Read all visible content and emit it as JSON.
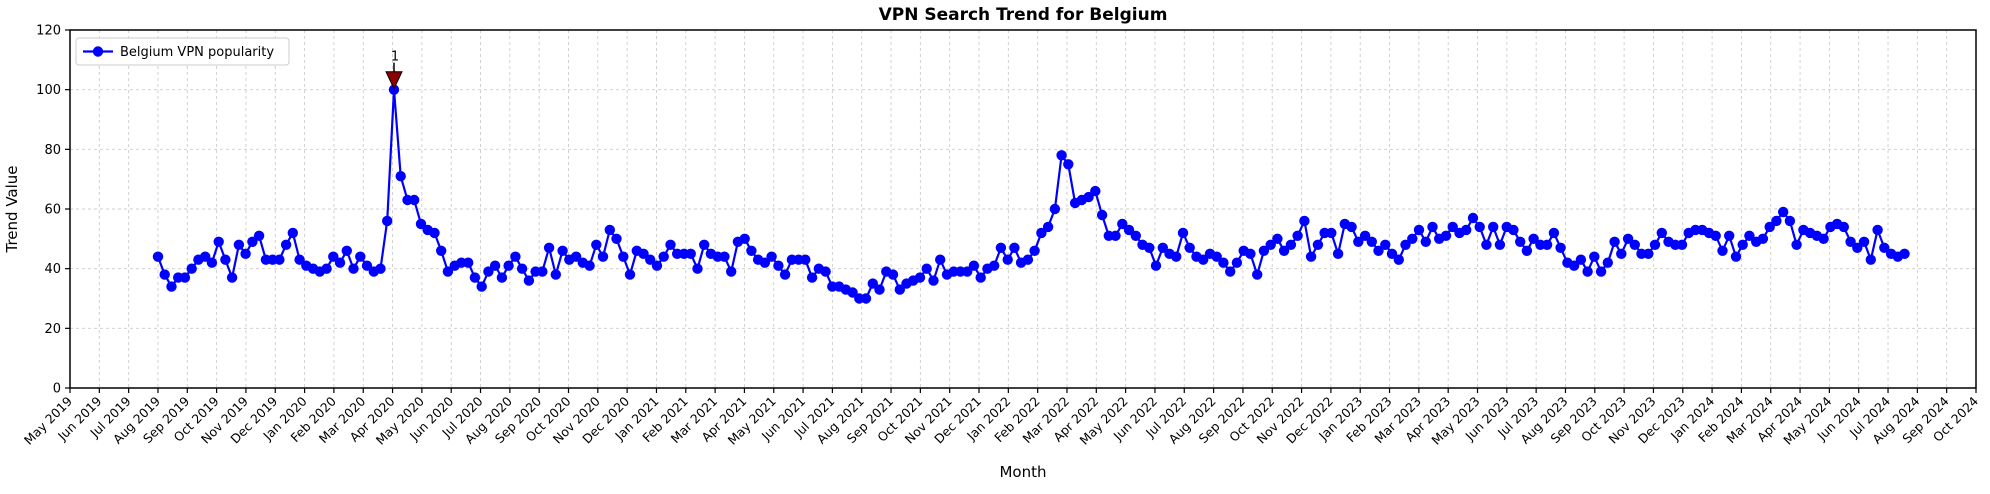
{
  "figure": {
    "background": "#ffffff"
  },
  "colors": {
    "line": "#0000ff",
    "marker": "#0000ff",
    "grid": "#cccccc",
    "spine": "#000000",
    "annotation": "#8b0000",
    "legend_border": "#cccccc"
  },
  "chart_data": {
    "type": "line",
    "title": "VPN Search Trend for Belgium",
    "xlabel": "Month",
    "ylabel": "Trend Value",
    "ylim": [
      0,
      120
    ],
    "yticks": [
      0,
      20,
      40,
      60,
      80,
      100,
      120
    ],
    "grid": true,
    "grid_style": "dashed",
    "legend_position": "upper-left",
    "x_tick_labels": [
      "May 2019",
      "Jun 2019",
      "Jul 2019",
      "Aug 2019",
      "Sep 2019",
      "Oct 2019",
      "Nov 2019",
      "Dec 2019",
      "Jan 2020",
      "Feb 2020",
      "Mar 2020",
      "Apr 2020",
      "May 2020",
      "Jun 2020",
      "Jul 2020",
      "Aug 2020",
      "Sep 2020",
      "Oct 2020",
      "Nov 2020",
      "Dec 2020",
      "Jan 2021",
      "Feb 2021",
      "Mar 2021",
      "Apr 2021",
      "May 2021",
      "Jun 2021",
      "Jul 2021",
      "Aug 2021",
      "Sep 2021",
      "Oct 2021",
      "Nov 2021",
      "Dec 2021",
      "Jan 2022",
      "Feb 2022",
      "Mar 2022",
      "Apr 2022",
      "May 2022",
      "Jun 2022",
      "Jul 2022",
      "Aug 2022",
      "Sep 2022",
      "Oct 2022",
      "Nov 2022",
      "Dec 2022",
      "Jan 2023",
      "Feb 2023",
      "Mar 2023",
      "Apr 2023",
      "May 2023",
      "Jun 2023",
      "Jul 2023",
      "Aug 2023",
      "Sep 2023",
      "Oct 2023",
      "Nov 2023",
      "Dec 2023",
      "Jan 2024",
      "Feb 2024",
      "Mar 2024",
      "Apr 2024",
      "May 2024",
      "Jun 2024",
      "Jul 2024",
      "Aug 2024",
      "Sep 2024",
      "Oct 2024"
    ],
    "series": [
      {
        "name": "Belgium VPN popularity",
        "color": "#0000ff",
        "marker": "circle",
        "x_unit": "week",
        "x_first_point": "Aug 2019",
        "x_last_point": "Jul 2024",
        "values": [
          44,
          38,
          34,
          37,
          37,
          40,
          43,
          44,
          42,
          49,
          43,
          37,
          48,
          45,
          49,
          51,
          43,
          43,
          43,
          48,
          52,
          43,
          41,
          40,
          39,
          40,
          44,
          42,
          46,
          40,
          44,
          41,
          39,
          40,
          56,
          100,
          71,
          63,
          63,
          55,
          53,
          52,
          46,
          39,
          41,
          42,
          42,
          37,
          34,
          39,
          41,
          37,
          41,
          44,
          40,
          36,
          39,
          39,
          47,
          38,
          46,
          43,
          44,
          42,
          41,
          48,
          44,
          53,
          50,
          44,
          38,
          46,
          45,
          43,
          41,
          44,
          48,
          45,
          45,
          45,
          40,
          48,
          45,
          44,
          44,
          39,
          49,
          50,
          46,
          43,
          42,
          44,
          41,
          38,
          43,
          43,
          43,
          37,
          40,
          39,
          34,
          34,
          33,
          32,
          30,
          30,
          35,
          33,
          39,
          38,
          33,
          35,
          36,
          37,
          40,
          36,
          43,
          38,
          39,
          39,
          39,
          41,
          37,
          40,
          41,
          47,
          43,
          47,
          42,
          43,
          46,
          52,
          54,
          60,
          78,
          75,
          62,
          63,
          64,
          66,
          58,
          51,
          51,
          55,
          53,
          51,
          48,
          47,
          41,
          47,
          45,
          44,
          52,
          47,
          44,
          43,
          45,
          44,
          42,
          39,
          42,
          46,
          45,
          38,
          46,
          48,
          50,
          46,
          48,
          51,
          56,
          44,
          48,
          52,
          52,
          45,
          55,
          54,
          49,
          51,
          49,
          46,
          48,
          45,
          43,
          48,
          50,
          53,
          49,
          54,
          50,
          51,
          54,
          52,
          53,
          57,
          54,
          48,
          54,
          48,
          54,
          53,
          49,
          46,
          50,
          48,
          48,
          52,
          47,
          42,
          41,
          43,
          39,
          44,
          39,
          42,
          49,
          45,
          50,
          48,
          45,
          45,
          48,
          52,
          49,
          48,
          48,
          52,
          53,
          53,
          52,
          51,
          46,
          51,
          44,
          48,
          51,
          49,
          50,
          54,
          56,
          59,
          56,
          48,
          53,
          52,
          51,
          50,
          54,
          55,
          54,
          49,
          47,
          49,
          43,
          53,
          47,
          45,
          44,
          45
        ]
      }
    ],
    "annotations": [
      {
        "text": "1",
        "series_index": 35,
        "value": 100,
        "marker": "triangle-down",
        "color": "#8b0000"
      }
    ]
  }
}
